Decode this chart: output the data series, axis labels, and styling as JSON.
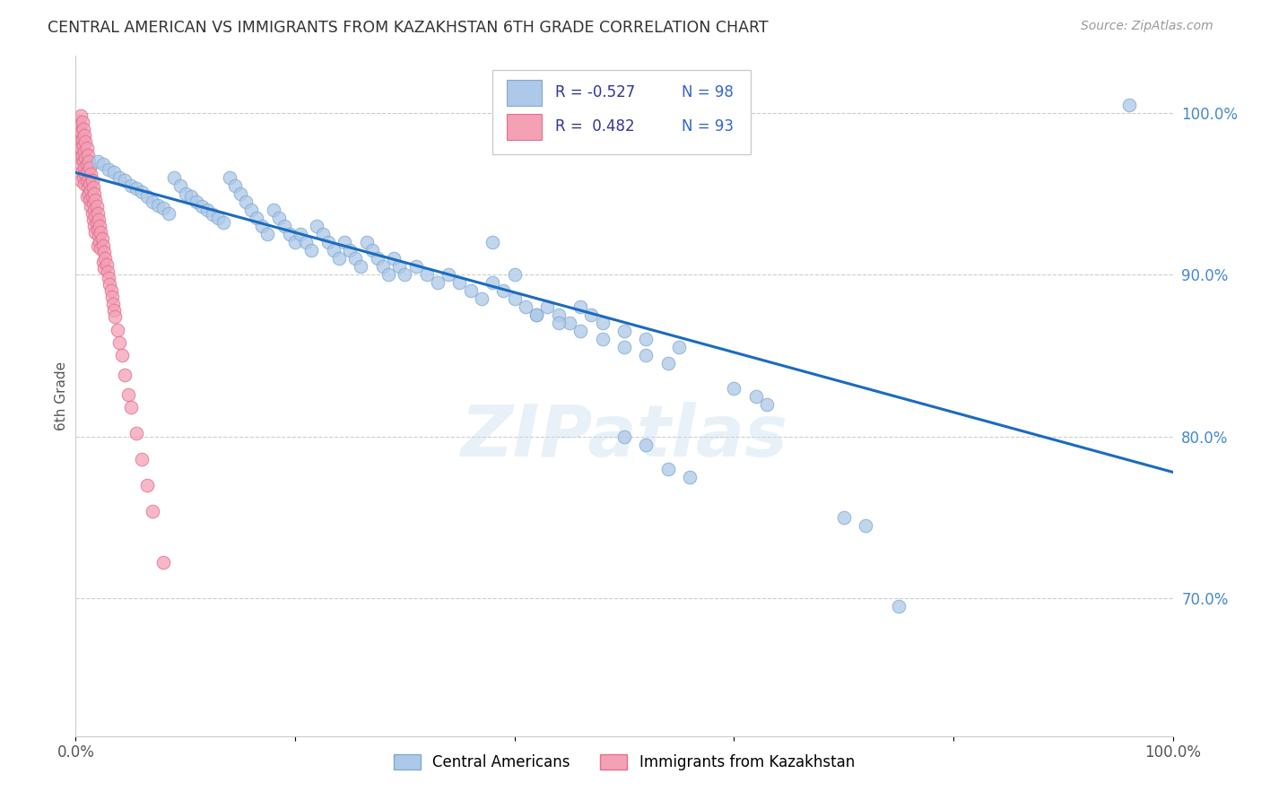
{
  "title": "CENTRAL AMERICAN VS IMMIGRANTS FROM KAZAKHSTAN 6TH GRADE CORRELATION CHART",
  "source": "Source: ZipAtlas.com",
  "ylabel": "6th Grade",
  "xlim": [
    0.0,
    1.0
  ],
  "ylim": [
    0.615,
    1.035
  ],
  "yticks": [
    0.7,
    0.8,
    0.9,
    1.0
  ],
  "ytick_labels": [
    "70.0%",
    "80.0%",
    "90.0%",
    "100.0%"
  ],
  "xticks": [
    0.0,
    0.2,
    0.4,
    0.6,
    0.8,
    1.0
  ],
  "xtick_labels": [
    "0.0%",
    "",
    "",
    "",
    "",
    "100.0%"
  ],
  "blue_color": "#adc8e8",
  "pink_color": "#f4a0b5",
  "line_color": "#1a6bbf",
  "title_color": "#333333",
  "watermark": "ZIPatlas",
  "trend_x": [
    0.0,
    1.0
  ],
  "trend_y_start": 0.963,
  "trend_y_end": 0.778,
  "blue_x": [
    0.02,
    0.025,
    0.03,
    0.035,
    0.04,
    0.045,
    0.05,
    0.055,
    0.06,
    0.065,
    0.07,
    0.075,
    0.08,
    0.085,
    0.09,
    0.095,
    0.1,
    0.105,
    0.11,
    0.115,
    0.12,
    0.125,
    0.13,
    0.135,
    0.14,
    0.145,
    0.15,
    0.155,
    0.16,
    0.165,
    0.17,
    0.175,
    0.18,
    0.185,
    0.19,
    0.195,
    0.2,
    0.205,
    0.21,
    0.215,
    0.22,
    0.225,
    0.23,
    0.235,
    0.24,
    0.245,
    0.25,
    0.255,
    0.26,
    0.265,
    0.27,
    0.275,
    0.28,
    0.285,
    0.29,
    0.295,
    0.3,
    0.31,
    0.32,
    0.33,
    0.34,
    0.35,
    0.36,
    0.37,
    0.38,
    0.39,
    0.4,
    0.41,
    0.42,
    0.43,
    0.44,
    0.45,
    0.46,
    0.47,
    0.48,
    0.5,
    0.52,
    0.55,
    0.38,
    0.4,
    0.42,
    0.44,
    0.46,
    0.48,
    0.5,
    0.52,
    0.54,
    0.6,
    0.62,
    0.63,
    0.7,
    0.72,
    0.75,
    0.5,
    0.52,
    0.54,
    0.56,
    0.96
  ],
  "blue_y": [
    0.97,
    0.968,
    0.965,
    0.963,
    0.96,
    0.958,
    0.955,
    0.953,
    0.951,
    0.948,
    0.945,
    0.943,
    0.941,
    0.938,
    0.96,
    0.955,
    0.95,
    0.948,
    0.945,
    0.942,
    0.94,
    0.937,
    0.935,
    0.932,
    0.96,
    0.955,
    0.95,
    0.945,
    0.94,
    0.935,
    0.93,
    0.925,
    0.94,
    0.935,
    0.93,
    0.925,
    0.92,
    0.925,
    0.92,
    0.915,
    0.93,
    0.925,
    0.92,
    0.915,
    0.91,
    0.92,
    0.915,
    0.91,
    0.905,
    0.92,
    0.915,
    0.91,
    0.905,
    0.9,
    0.91,
    0.905,
    0.9,
    0.905,
    0.9,
    0.895,
    0.9,
    0.895,
    0.89,
    0.885,
    0.895,
    0.89,
    0.885,
    0.88,
    0.875,
    0.88,
    0.875,
    0.87,
    0.88,
    0.875,
    0.87,
    0.865,
    0.86,
    0.855,
    0.92,
    0.9,
    0.875,
    0.87,
    0.865,
    0.86,
    0.855,
    0.85,
    0.845,
    0.83,
    0.825,
    0.82,
    0.75,
    0.745,
    0.695,
    0.8,
    0.795,
    0.78,
    0.775,
    1.005
  ],
  "pink_x": [
    0.002,
    0.002,
    0.003,
    0.003,
    0.003,
    0.004,
    0.004,
    0.004,
    0.005,
    0.005,
    0.005,
    0.005,
    0.005,
    0.006,
    0.006,
    0.006,
    0.006,
    0.007,
    0.007,
    0.007,
    0.007,
    0.008,
    0.008,
    0.008,
    0.008,
    0.009,
    0.009,
    0.009,
    0.01,
    0.01,
    0.01,
    0.01,
    0.011,
    0.011,
    0.011,
    0.012,
    0.012,
    0.012,
    0.013,
    0.013,
    0.013,
    0.014,
    0.014,
    0.014,
    0.015,
    0.015,
    0.015,
    0.016,
    0.016,
    0.016,
    0.017,
    0.017,
    0.017,
    0.018,
    0.018,
    0.018,
    0.019,
    0.019,
    0.02,
    0.02,
    0.02,
    0.021,
    0.021,
    0.022,
    0.022,
    0.023,
    0.023,
    0.024,
    0.025,
    0.025,
    0.026,
    0.026,
    0.027,
    0.028,
    0.029,
    0.03,
    0.031,
    0.032,
    0.033,
    0.034,
    0.035,
    0.036,
    0.038,
    0.04,
    0.042,
    0.045,
    0.048,
    0.05,
    0.055,
    0.06,
    0.065,
    0.07,
    0.08
  ],
  "pink_y": [
    0.99,
    0.98,
    0.995,
    0.985,
    0.975,
    0.992,
    0.982,
    0.972,
    0.998,
    0.988,
    0.978,
    0.968,
    0.958,
    0.994,
    0.984,
    0.974,
    0.964,
    0.99,
    0.98,
    0.97,
    0.96,
    0.986,
    0.976,
    0.966,
    0.956,
    0.982,
    0.972,
    0.962,
    0.978,
    0.968,
    0.958,
    0.948,
    0.974,
    0.964,
    0.954,
    0.97,
    0.96,
    0.95,
    0.966,
    0.956,
    0.946,
    0.962,
    0.952,
    0.942,
    0.958,
    0.948,
    0.938,
    0.954,
    0.944,
    0.934,
    0.95,
    0.94,
    0.93,
    0.946,
    0.936,
    0.926,
    0.942,
    0.932,
    0.938,
    0.928,
    0.918,
    0.934,
    0.924,
    0.93,
    0.92,
    0.926,
    0.916,
    0.922,
    0.918,
    0.908,
    0.914,
    0.904,
    0.91,
    0.906,
    0.902,
    0.898,
    0.894,
    0.89,
    0.886,
    0.882,
    0.878,
    0.874,
    0.866,
    0.858,
    0.85,
    0.838,
    0.826,
    0.818,
    0.802,
    0.786,
    0.77,
    0.754,
    0.722
  ]
}
